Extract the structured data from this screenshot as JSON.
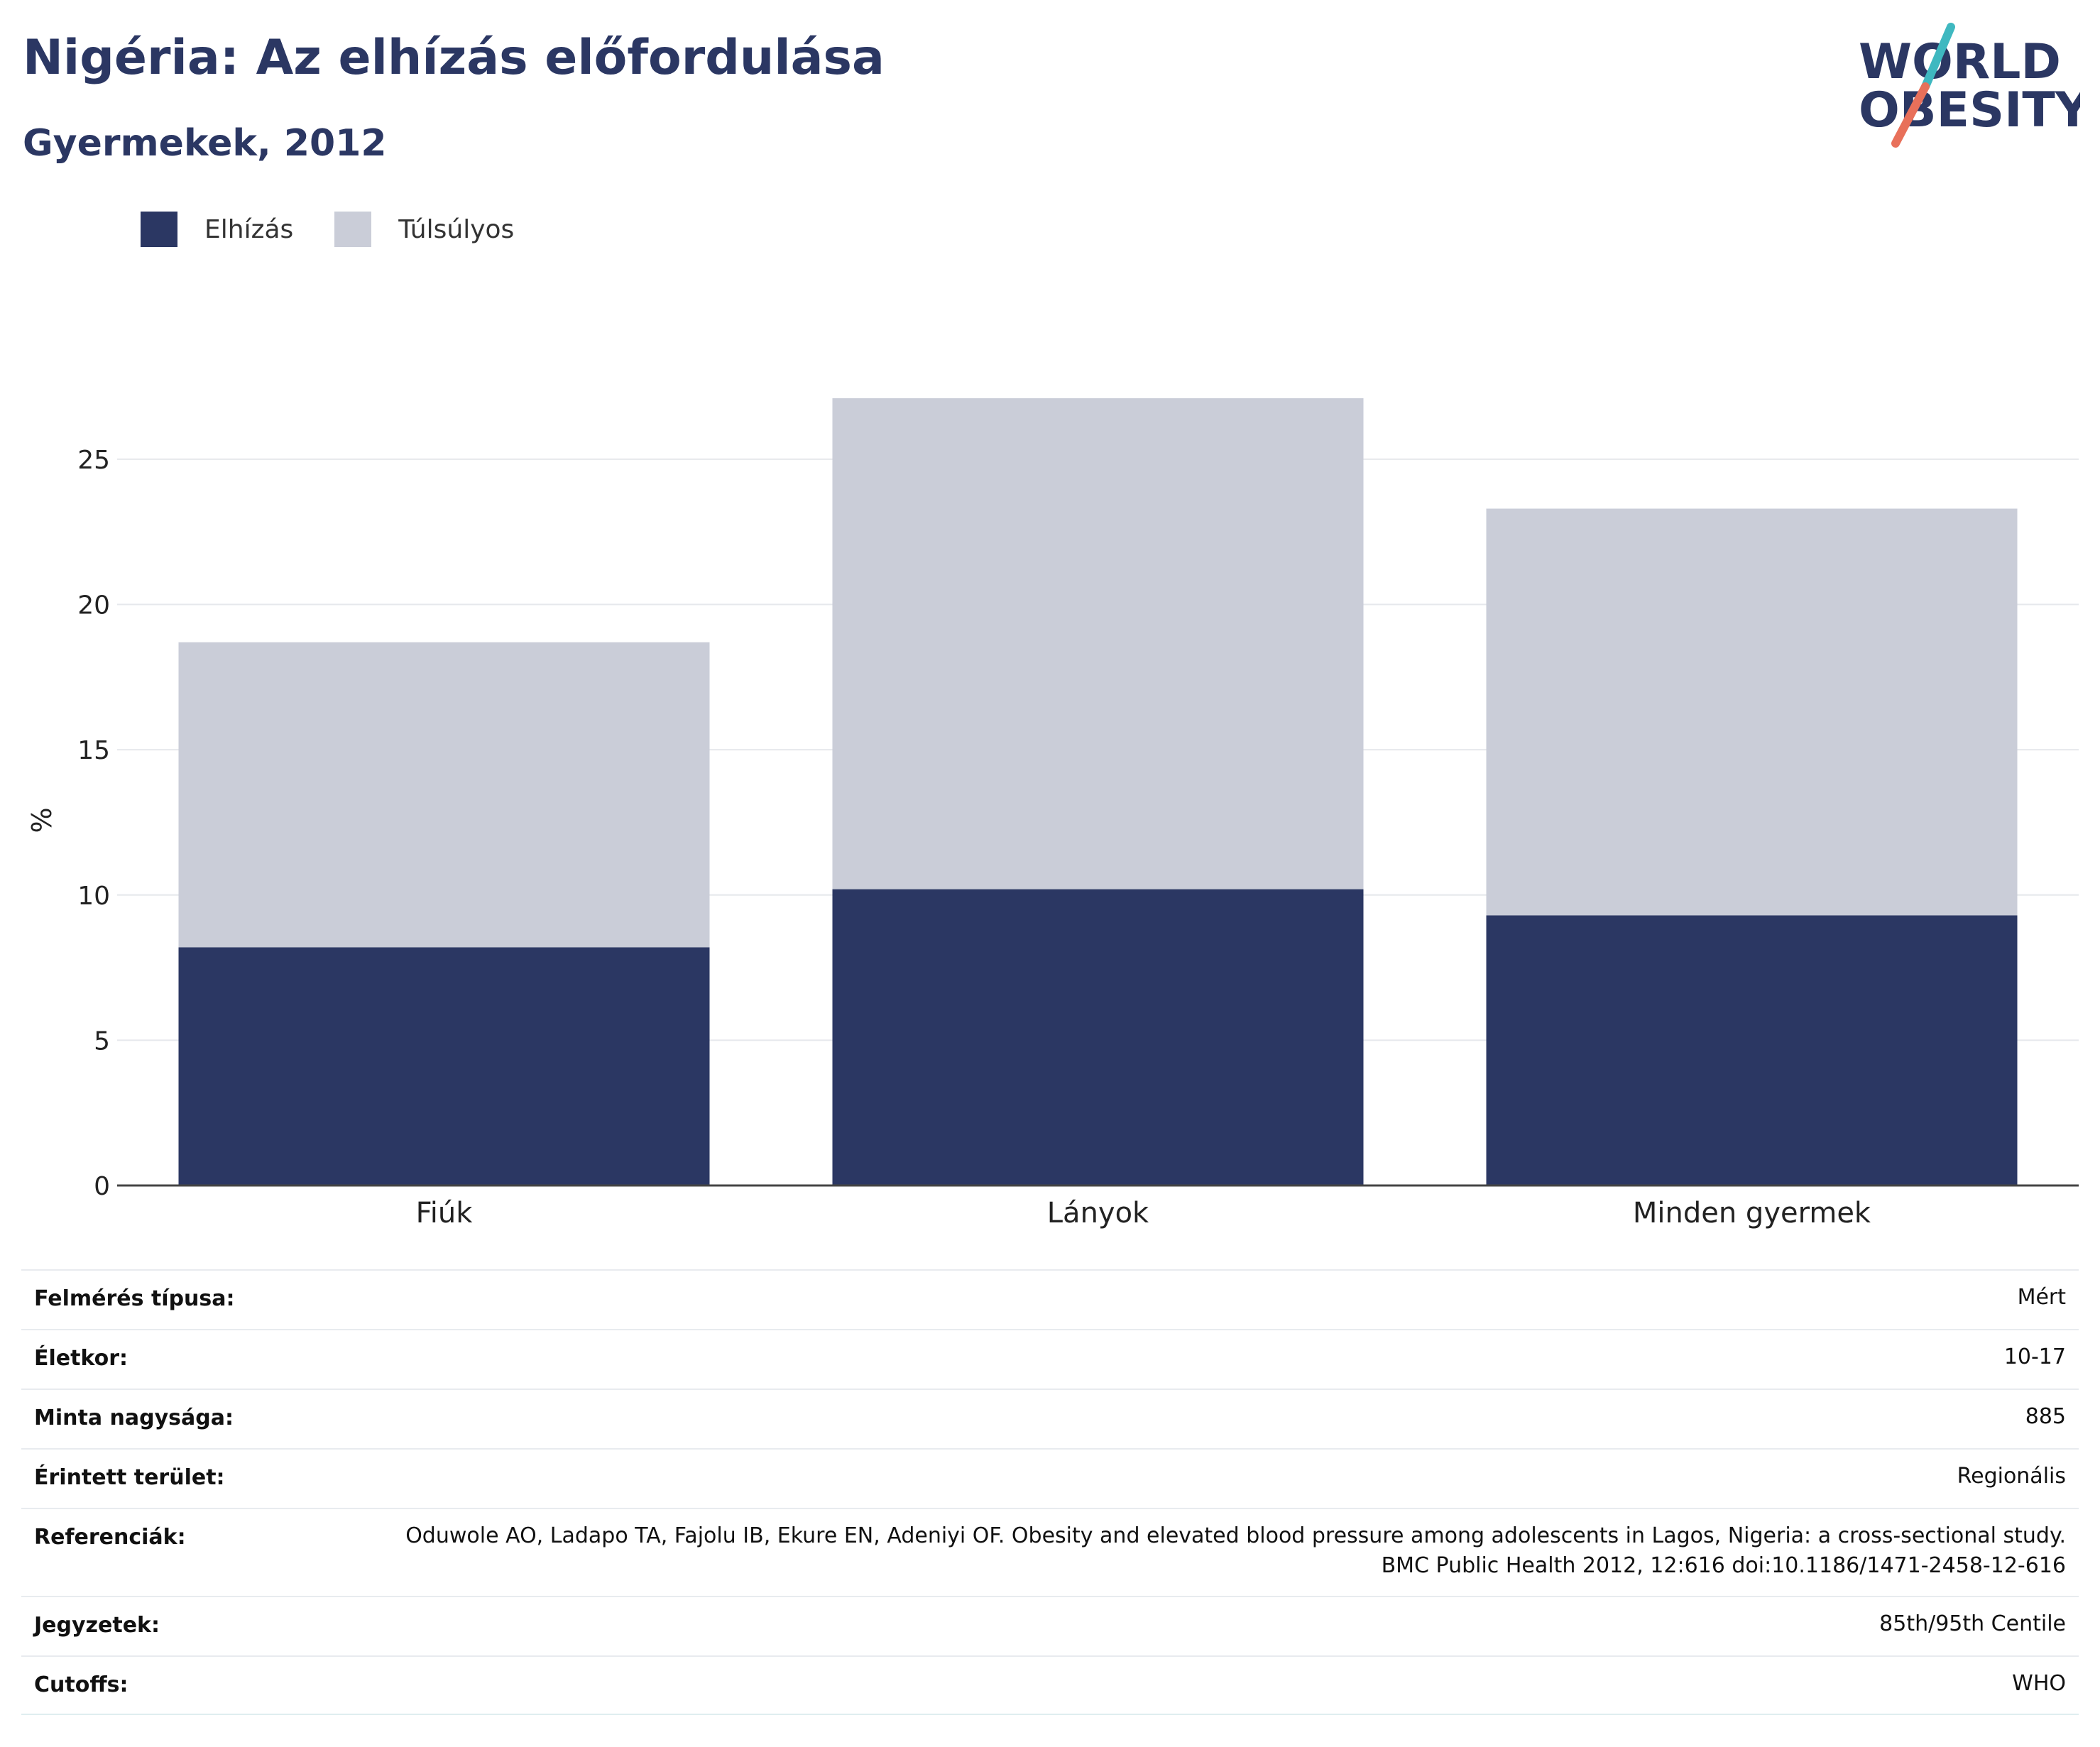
{
  "header": {
    "title": "Nigéria: Az elhízás előfordulása",
    "subtitle": "Gyermekek, 2012"
  },
  "logo": {
    "line1": "WORLD",
    "line2": "OBESITY",
    "colors": {
      "text": "#2b3763",
      "slash_top": "#3fb8c0",
      "slash_bottom": "#e8705a"
    }
  },
  "legend": [
    {
      "label": "Elhízás",
      "color": "#2b3763"
    },
    {
      "label": "Túlsúlyos",
      "color": "#cacdd8"
    }
  ],
  "chart_data": {
    "type": "bar",
    "stacked": true,
    "categories": [
      "Fiúk",
      "Lányok",
      "Minden gyermek"
    ],
    "series": [
      {
        "name": "Elhízás",
        "color": "#2b3763",
        "values": [
          8.2,
          10.2,
          9.3
        ]
      },
      {
        "name": "Túlsúlyos",
        "color": "#cacdd8",
        "values": [
          10.5,
          16.9,
          14.0
        ]
      }
    ],
    "ylabel": "%",
    "ylim": [
      0,
      27.1
    ],
    "yticks": [
      0,
      5,
      10,
      15,
      20,
      25
    ],
    "grid": true
  },
  "info": [
    {
      "key": "Felmérés típusa:",
      "value": "Mért"
    },
    {
      "key": "Életkor:",
      "value": "10-17"
    },
    {
      "key": "Minta nagysága:",
      "value": "885"
    },
    {
      "key": "Érintett terület:",
      "value": "Regionális"
    },
    {
      "key": "Referenciák:",
      "value": "Oduwole AO, Ladapo TA, Fajolu IB, Ekure EN, Adeniyi OF. Obesity and elevated blood pressure among adolescents in Lagos, Nigeria: a cross-sectional study. BMC Public Health 2012, 12:616 doi:10.1186/1471-2458-12-616"
    },
    {
      "key": "Jegyzetek:",
      "value": "85th/95th Centile"
    },
    {
      "key": "Cutoffs:",
      "value": "WHO"
    }
  ]
}
